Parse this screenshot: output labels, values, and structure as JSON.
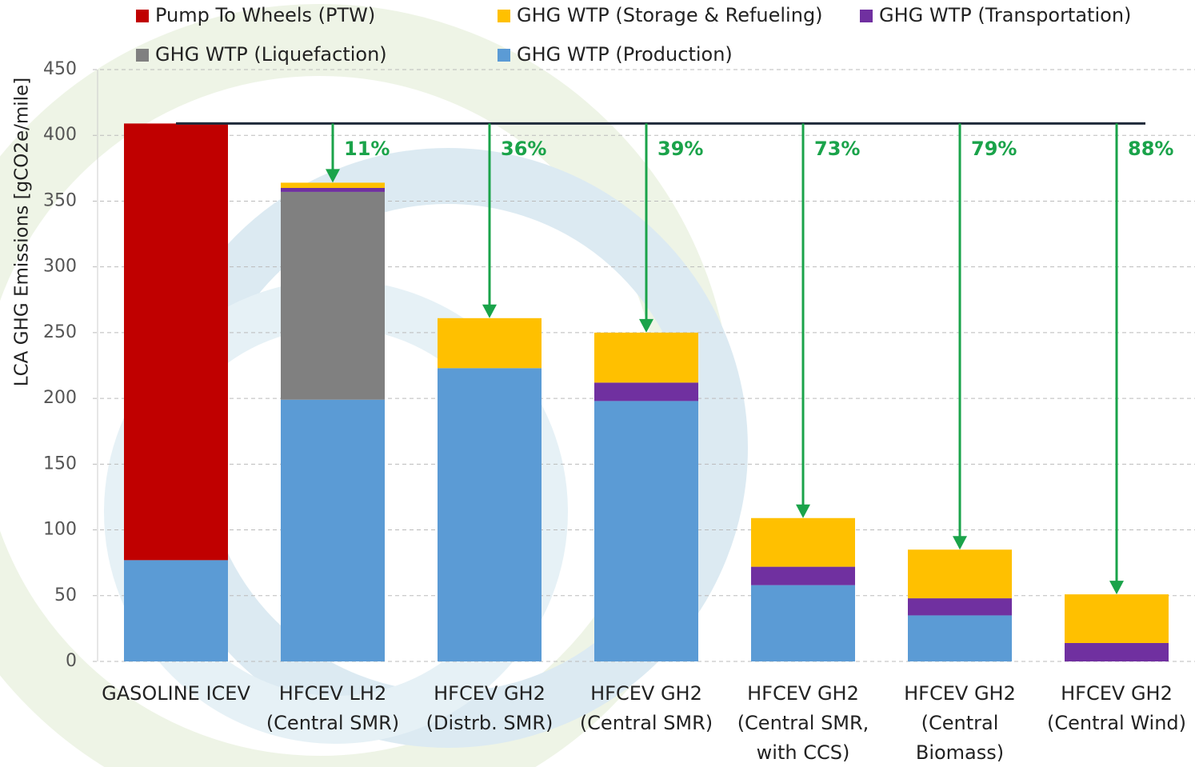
{
  "chart_data": {
    "type": "stacked-bar",
    "y_label": "LCA GHG Emissions [gCO2e/mile]",
    "categories": [
      [
        "GASOLINE ICEV"
      ],
      [
        "HFCEV LH2",
        "(Central SMR)"
      ],
      [
        "HFCEV GH2",
        "(Distrb. SMR)"
      ],
      [
        "HFCEV GH2",
        "(Central SMR)"
      ],
      [
        "HFCEV GH2",
        "(Central SMR,",
        "with CCS)"
      ],
      [
        "HFCEV GH2",
        "(Central",
        "Biomass)"
      ],
      [
        "HFCEV GH2",
        "(Central Wind)"
      ]
    ],
    "series": [
      {
        "name": "Pump To Wheels (PTW)",
        "color": "#c00000",
        "values": [
          332,
          0,
          0,
          0,
          0,
          0,
          0
        ]
      },
      {
        "name": "GHG WTP (Storage & Refueling)",
        "color": "#ffc000",
        "values": [
          0,
          4,
          38,
          38,
          37,
          37,
          37
        ]
      },
      {
        "name": "GHG WTP (Transportation)",
        "color": "#7030a0",
        "values": [
          0,
          3,
          0,
          14,
          14,
          13,
          14
        ]
      },
      {
        "name": "GHG WTP (Liquefaction)",
        "color": "#808080",
        "values": [
          0,
          158,
          0,
          0,
          0,
          0,
          0
        ]
      },
      {
        "name": "GHG WTP (Production)",
        "color": "#5b9bd5",
        "values": [
          77,
          199,
          223,
          198,
          58,
          35,
          0
        ]
      }
    ],
    "reduction_labels": [
      null,
      "11%",
      "36%",
      "39%",
      "73%",
      "79%",
      "88%"
    ],
    "reduction_color": "#1aa34a",
    "ylim": [
      0,
      450
    ],
    "yticks": [
      0,
      50,
      100,
      150,
      200,
      250,
      300,
      350,
      400,
      450
    ],
    "grid": true
  }
}
